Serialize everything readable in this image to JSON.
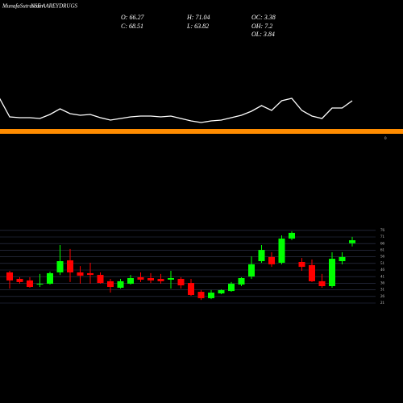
{
  "watermark": "MunafaSutra.com",
  "title": "NSE AAREYDRUGS",
  "stats": [
    "O: 66.27",
    "H: 71.04",
    "OC: 3.38",
    "C: 68.51",
    "L: 63.82",
    "OH: 7.2",
    "OL: 3.84"
  ],
  "chart_data": [
    {
      "type": "line",
      "color": "#ffffff",
      "band_color": "#ff8c00",
      "values": [
        38,
        15,
        14,
        14,
        13,
        18,
        25,
        19,
        17,
        18,
        14,
        11,
        13,
        15,
        16,
        16,
        15,
        16,
        13,
        10,
        8,
        10,
        11,
        14,
        17,
        22,
        29,
        23,
        35,
        38,
        23,
        16,
        13,
        26,
        26,
        35
      ],
      "ylim": [
        0,
        50
      ],
      "yticks": [
        0
      ]
    },
    {
      "type": "candlestick",
      "up_color": "#00ff00",
      "down_color": "#ff0000",
      "grid": true,
      "categories": [
        null,
        null,
        null,
        null,
        null,
        null,
        null,
        null,
        null,
        null,
        null,
        null,
        null,
        null,
        null,
        null,
        null,
        null,
        null,
        null,
        null,
        null,
        null,
        null,
        null,
        null,
        null,
        null,
        null,
        null,
        null,
        null,
        null,
        null,
        null
      ],
      "open": [
        44.2,
        39.3,
        38.1,
        35.0,
        35.6,
        44.2,
        53.3,
        44.2,
        43.6,
        42.3,
        37.5,
        32.6,
        35.6,
        40.5,
        39.9,
        39.3,
        38.7,
        39.3,
        36.2,
        29.5,
        24.7,
        28.3,
        30.1,
        35.0,
        41.1,
        52.7,
        55.8,
        51.5,
        69.8,
        52.1,
        49.7,
        37.5,
        33.8,
        52.7,
        66.27
      ],
      "high": [
        45.4,
        40.5,
        40.5,
        43.0,
        44.8,
        64.9,
        61.9,
        49.0,
        51.5,
        44.2,
        39.3,
        39.3,
        42.3,
        44.2,
        43.6,
        43.0,
        45.4,
        40.5,
        39.3,
        30.8,
        30.8,
        31.4,
        36.9,
        40.5,
        56.4,
        64.9,
        59.4,
        72.2,
        75.3,
        55.1,
        53.9,
        43.0,
        59.4,
        59.4,
        71.04
      ],
      "low": [
        32.0,
        35.6,
        32.6,
        33.2,
        35.0,
        42.3,
        36.9,
        35.6,
        35.6,
        35.6,
        28.9,
        32.0,
        35.0,
        36.9,
        36.2,
        35.6,
        32.0,
        32.0,
        26.5,
        23.4,
        24.0,
        27.7,
        29.5,
        33.8,
        39.3,
        51.5,
        48.4,
        50.3,
        68.6,
        45.4,
        36.9,
        32.6,
        32.6,
        50.3,
        63.82
      ],
      "close": [
        38.1,
        36.9,
        33.2,
        35.6,
        43.6,
        52.7,
        44.2,
        41.7,
        42.3,
        36.2,
        33.2,
        37.5,
        39.9,
        38.7,
        38.1,
        37.5,
        39.9,
        34.4,
        27.1,
        24.7,
        28.9,
        30.8,
        35.6,
        39.9,
        50.3,
        61.2,
        50.3,
        69.8,
        74.1,
        48.4,
        37.5,
        33.8,
        54.5,
        55.8,
        68.51
      ],
      "ylim": [
        21,
        76
      ],
      "yticks": [
        76,
        71,
        66,
        61,
        56,
        51,
        46,
        41,
        36,
        31,
        26,
        21
      ]
    }
  ]
}
